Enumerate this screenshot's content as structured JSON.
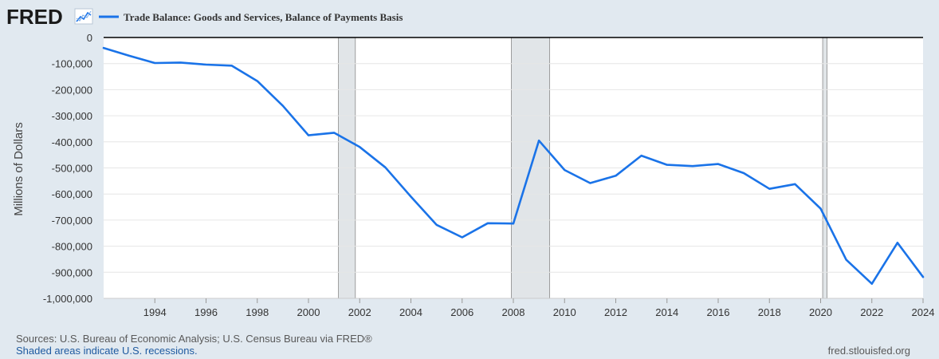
{
  "logo": {
    "text": "FRED",
    "icon": "trend-graph-icon"
  },
  "legend": {
    "label": "Trade Balance: Goods and Services, Balance of Payments Basis"
  },
  "colors": {
    "series": "#1a73e8",
    "recession": "#e1e5e8",
    "background": "#e1e9f0",
    "plot": "#ffffff"
  },
  "chart_data": {
    "type": "line",
    "title": "",
    "xlabel": "",
    "ylabel": "Millions of Dollars",
    "xlim": [
      1992,
      2024
    ],
    "ylim": [
      -1000000,
      0
    ],
    "grid": true,
    "legend_position": "top-left",
    "x_ticks": [
      1994,
      1996,
      1998,
      2000,
      2002,
      2004,
      2006,
      2008,
      2010,
      2012,
      2014,
      2016,
      2018,
      2020,
      2022,
      2024
    ],
    "y_ticks": [
      0,
      -100000,
      -200000,
      -300000,
      -400000,
      -500000,
      -600000,
      -700000,
      -800000,
      -900000,
      -1000000
    ],
    "y_tick_labels": [
      "0",
      "-100,000",
      "-200,000",
      "-300,000",
      "-400,000",
      "-500,000",
      "-600,000",
      "-700,000",
      "-800,000",
      "-900,000",
      "-1,000,000"
    ],
    "recessions": [
      [
        2001.17,
        2001.83
      ],
      [
        2007.92,
        2009.42
      ],
      [
        2020.08,
        2020.25
      ]
    ],
    "series": [
      {
        "name": "Trade Balance: Goods and Services, Balance of Payments Basis",
        "x": [
          1992,
          1993,
          1994,
          1995,
          1996,
          1997,
          1998,
          1999,
          2000,
          2001,
          2002,
          2003,
          2004,
          2005,
          2006,
          2007,
          2008,
          2009,
          2010,
          2011,
          2012,
          2013,
          2014,
          2015,
          2016,
          2017,
          2018,
          2019,
          2020,
          2021,
          2022,
          2023,
          2024
        ],
        "values": [
          -40000,
          -70000,
          -98000,
          -96000,
          -104000,
          -108000,
          -167000,
          -262000,
          -375000,
          -365000,
          -420000,
          -498000,
          -610000,
          -718000,
          -766000,
          -712000,
          -713000,
          -395000,
          -508000,
          -558000,
          -530000,
          -453000,
          -488000,
          -493000,
          -485000,
          -520000,
          -580000,
          -562000,
          -656000,
          -852000,
          -944000,
          -787000,
          -918000
        ]
      }
    ]
  },
  "footer": {
    "sources": "Sources: U.S. Bureau of Economic Analysis; U.S. Census Bureau via FRED®",
    "recessions_note": "Shaded areas indicate U.S. recessions.",
    "site": "fred.stlouisfed.org"
  }
}
